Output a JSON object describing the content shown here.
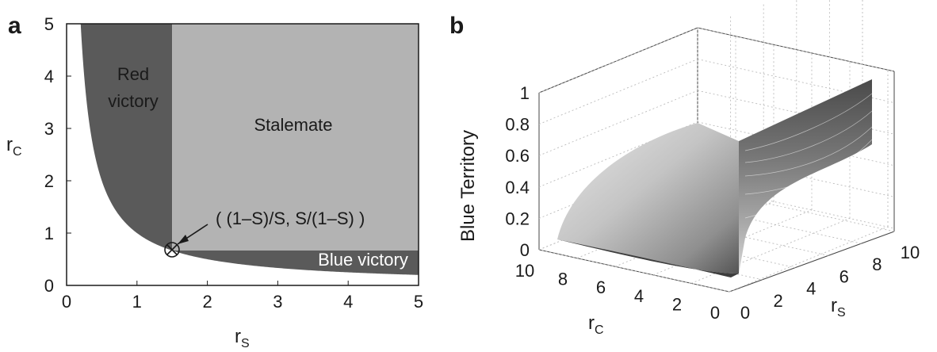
{
  "panels": {
    "a": {
      "label": "a"
    },
    "b": {
      "label": "b"
    }
  },
  "chart_data": [
    {
      "type": "area",
      "panel": "a",
      "xlabel": "r",
      "xlabel_sub": "S",
      "ylabel": "r",
      "ylabel_sub": "C",
      "xlim": [
        0,
        5
      ],
      "ylim": [
        0,
        5
      ],
      "xticks": [
        "0",
        "1",
        "2",
        "3",
        "4",
        "5"
      ],
      "yticks": [
        "0",
        "1",
        "2",
        "3",
        "4",
        "5"
      ],
      "grid": false,
      "boundary_curve": "rC = 1/rS",
      "vertical_boundary_rS": 1.5,
      "horizontal_boundary_rC": 0.667,
      "regions": [
        {
          "name": "Red victory",
          "line1": "Red",
          "line2": "victory"
        },
        {
          "name": "Stalemate",
          "line1": "Stalemate"
        },
        {
          "name": "Blue victory",
          "line1": "Blue victory"
        }
      ],
      "annotation": {
        "text": "( (1–S)/S, S/(1–S) )",
        "point": [
          1.5,
          0.667
        ]
      },
      "colors": {
        "dark": "#5a5a5a",
        "light": "#b3b3b3",
        "white": "#ffffff"
      }
    },
    {
      "type": "surface",
      "panel": "b",
      "zlabel": "Blue Territory",
      "xlabel": "r",
      "xlabel_sub": "C",
      "ylabel": "r",
      "ylabel_sub": "S",
      "zticks": [
        "0",
        "0.2",
        "0.4",
        "0.6",
        "0.8",
        "1"
      ],
      "rc_ticks": [
        "10",
        "8",
        "6",
        "4",
        "2",
        "0"
      ],
      "rs_ticks": [
        "0",
        "2",
        "4",
        "6",
        "8",
        "10"
      ],
      "zlim": [
        0,
        1
      ],
      "rc_range": [
        0,
        10
      ],
      "rs_range": [
        0,
        10
      ],
      "grid": true,
      "colormap": "gray"
    }
  ]
}
